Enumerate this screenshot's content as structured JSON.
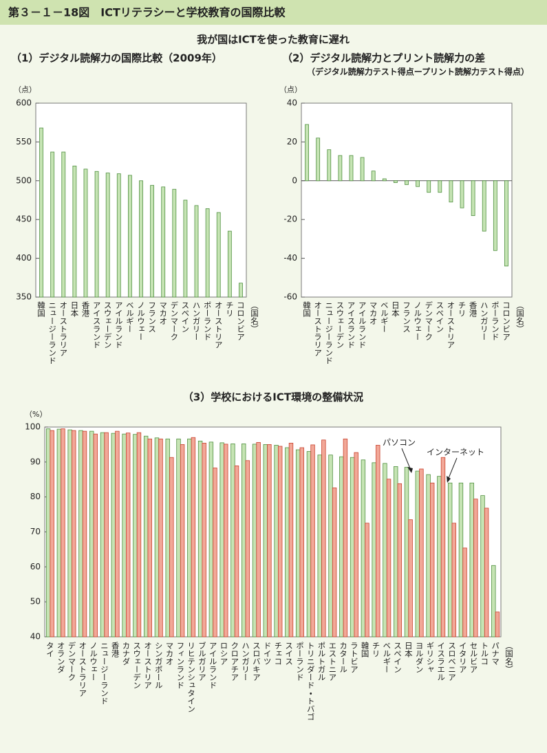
{
  "figure_title": "第３－１－18図　ICTリテラシーと学校教育の国際比較",
  "subtitle": "我が国はICTを使った教育に遅れ",
  "chart_data": [
    {
      "type": "bar",
      "title": "（1）デジタル読解力の国際比較（2009年）",
      "y_unit": "（点）",
      "x_label": "（国名）",
      "categories": [
        "韓国",
        "ニュージーランド",
        "オーストラリア",
        "日本",
        "香港",
        "アイスランド",
        "スウェーデン",
        "アイルランド",
        "ベルギー",
        "ノルウェー",
        "フランス",
        "マカオ",
        "デンマーク",
        "スペイン",
        "ハンガリー",
        "ポーランド",
        "オーストリア",
        "チリ",
        "コロンビア"
      ],
      "values": [
        568,
        537,
        537,
        519,
        515,
        512,
        510,
        509,
        507,
        500,
        494,
        492,
        489,
        475,
        468,
        464,
        459,
        435,
        368
      ],
      "color": "#c6e4b4",
      "edgecolor": "#4f8f3f",
      "ylim": [
        350,
        600
      ],
      "yticks": [
        350,
        400,
        450,
        500,
        550,
        600
      ],
      "grid": false
    },
    {
      "type": "bar",
      "title": "（2）デジタル読解力とプリント読解力の差",
      "subtitle": "（デジタル読解力テスト得点ープリント読解力テスト得点）",
      "y_unit": "（点）",
      "x_label": "（国名）",
      "categories": [
        "韓国",
        "オーストラリア",
        "ニュージーランド",
        "スウェーデン",
        "アイスランド",
        "アイルランド",
        "マカオ",
        "ベルギー",
        "日本",
        "フランス",
        "ノルウェー",
        "デンマーク",
        "スペイン",
        "オーストリア",
        "チリ",
        "香港",
        "ハンガリー",
        "ポーランド",
        "コロンビア"
      ],
      "values": [
        29,
        22,
        16,
        13,
        13,
        12,
        5,
        1,
        -1,
        -2,
        -3,
        -6,
        -6,
        -11,
        -14,
        -18,
        -26,
        -36,
        -44
      ],
      "color": "#c6e4b4",
      "edgecolor": "#4f8f3f",
      "ylim": [
        -60,
        40
      ],
      "yticks": [
        -60,
        -40,
        -20,
        0,
        20,
        40
      ],
      "grid": false
    },
    {
      "type": "bar",
      "title": "（3）学校におけるICT環境の整備状況",
      "y_unit": "（%）",
      "x_label": "（国名）",
      "categories": [
        "タイ",
        "オランダ",
        "デンマーク",
        "オーストラリア",
        "ノルウェー",
        "ニュージーランド",
        "香港",
        "カナダ",
        "スウェーデン",
        "オーストリア",
        "シンガポール",
        "マカオ",
        "フィンランド",
        "リヒテンシュタイン",
        "ブルガリア",
        "アイルランド",
        "ロシア",
        "クロアチア",
        "ハンガリー",
        "スロバキア",
        "ドイツ",
        "チェコ",
        "スイス",
        "ポーランド",
        "トリニダード・トバゴ",
        "ポルトガル",
        "エストニア",
        "カタール",
        "ラトビア",
        "韓国",
        "チリ",
        "ベルギー",
        "スペイン",
        "日本",
        "ヨルダン",
        "ギリシャ",
        "イスラエル",
        "スロベニア",
        "イタリア",
        "セルビア",
        "トルコ",
        "パナマ"
      ],
      "series": [
        {
          "name": "パソコン",
          "color": "#c6e4b4",
          "edgecolor": "#4f8f3f",
          "values": [
            99.5,
            99.4,
            99.2,
            99,
            98.8,
            98.4,
            98.2,
            98,
            97.9,
            97.4,
            96.9,
            96.6,
            96.6,
            96.6,
            96,
            95.7,
            95.5,
            95.2,
            95.2,
            95.1,
            95,
            94.8,
            94.1,
            93.5,
            93,
            92,
            92,
            91.5,
            91.3,
            90.6,
            89.8,
            89.6,
            88.7,
            88.5,
            87.4,
            86.4,
            85.9,
            84,
            84,
            84,
            80.4,
            60.4
          ]
        },
        {
          "name": "インターネット",
          "color": "#f2a898",
          "edgecolor": "#c8402c",
          "values": [
            99,
            99.5,
            99,
            98.8,
            98,
            98.4,
            98.8,
            98.3,
            98.4,
            96.6,
            96.6,
            91.3,
            95,
            97,
            95.4,
            88.3,
            95.1,
            88.9,
            90.4,
            95.6,
            95,
            94.5,
            95.4,
            94.1,
            94.9,
            96.3,
            82.6,
            96.6,
            92.7,
            72.5,
            94.8,
            85.1,
            83.8,
            73.5,
            88,
            84,
            91.3,
            72.5,
            65.4,
            79.4,
            76.8,
            47.1
          ]
        }
      ],
      "ylim": [
        40,
        100
      ],
      "yticks": [
        40,
        50,
        60,
        70,
        80,
        90,
        100
      ],
      "grid": false
    }
  ]
}
